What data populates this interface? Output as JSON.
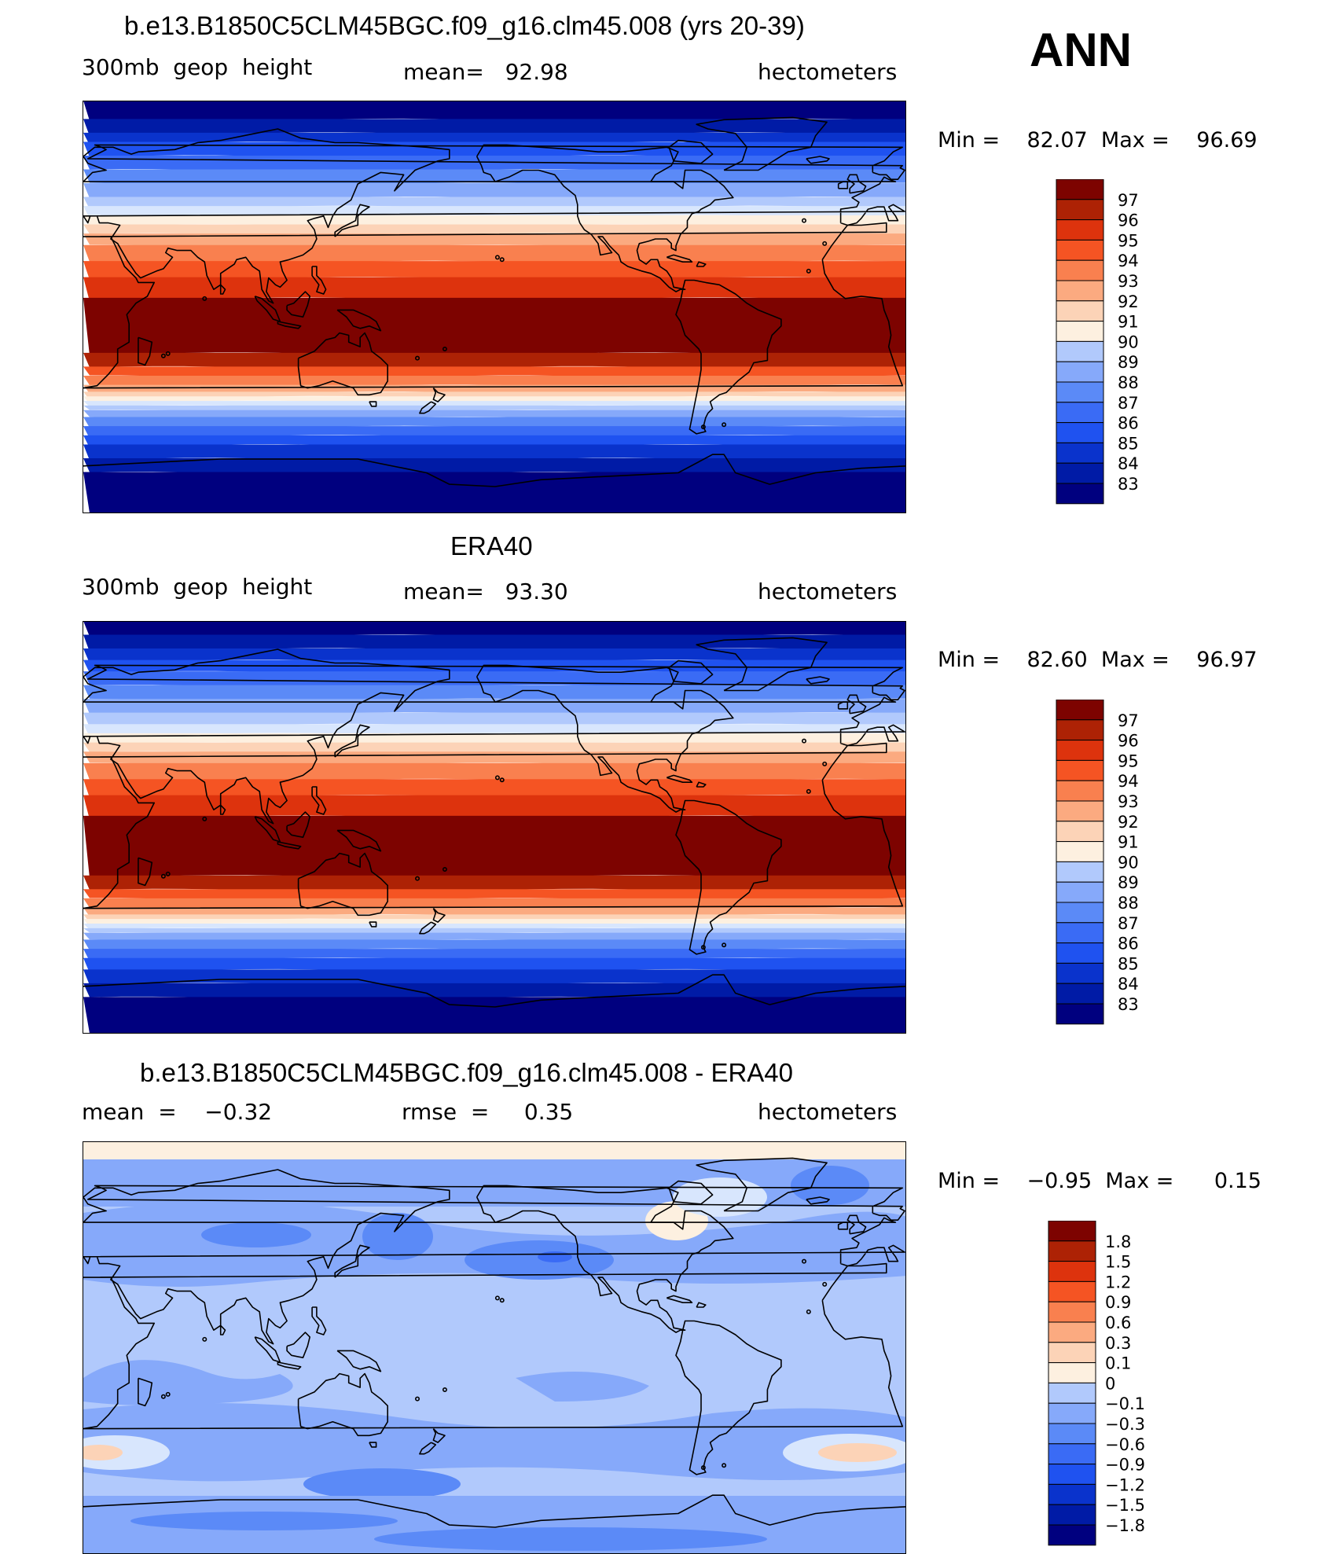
{
  "season": "ANN",
  "colors": {
    "abs_scale": [
      "#00007f",
      "#001ba6",
      "#0a33cc",
      "#1f52f0",
      "#3a6bf5",
      "#5b8af7",
      "#86a9fa",
      "#b1c9fc",
      "#d8e6fd",
      "#fdf0e0",
      "#fcd3b7",
      "#fbaa80",
      "#f9804f",
      "#f55423",
      "#dd330d",
      "#ad2205",
      "#7d0300"
    ],
    "diff_scale": [
      "#00007f",
      "#001ba6",
      "#0a33cc",
      "#1f52f0",
      "#3a6bf5",
      "#5b8af7",
      "#86a9fa",
      "#b1c9fc",
      "#d8e6fd",
      "#fdf0e0",
      "#fcd3b7",
      "#fbaa80",
      "#f9804f",
      "#f55423",
      "#dd330d",
      "#ad2205",
      "#7d0300"
    ],
    "coastline": "#000000"
  },
  "panels": [
    {
      "title": "b.e13.B1850C5CLM45BGC.f09_g16.clm45.008 (yrs 20-39)",
      "left_label": "300mb  geop  height",
      "center_label": "mean=   92.98",
      "right_label": "hectometers",
      "minmax": "Min =    82.07  Max =    96.69",
      "colorbar_labels": [
        "97",
        "96",
        "95",
        "94",
        "93",
        "92",
        "91",
        "90",
        "89",
        "88",
        "87",
        "86",
        "85",
        "84",
        "83"
      ]
    },
    {
      "title": "ERA40",
      "left_label": "300mb  geop  height",
      "center_label": "mean=   93.30",
      "right_label": "hectometers",
      "minmax": "Min =    82.60  Max =    96.97",
      "colorbar_labels": [
        "97",
        "96",
        "95",
        "94",
        "93",
        "92",
        "91",
        "90",
        "89",
        "88",
        "87",
        "86",
        "85",
        "84",
        "83"
      ]
    },
    {
      "title": "b.e13.B1850C5CLM45BGC.f09_g16.clm45.008 - ERA40",
      "left_label": "mean  =    −0.32",
      "center_label": "rmse  =     0.35",
      "right_label": "hectometers",
      "minmax": "Min =    −0.95  Max =      0.15",
      "colorbar_labels": [
        "1.8",
        "1.5",
        "1.2",
        "0.9",
        "0.6",
        "0.3",
        "0.1",
        "0",
        "−0.1",
        "−0.3",
        "−0.6",
        "−0.9",
        "−1.2",
        "−1.5",
        "−1.8"
      ]
    }
  ],
  "chart_data": [
    {
      "type": "heatmap",
      "title": "b.e13.B1850C5CLM45BGC.f09_g16.clm45.008 (yrs 20-39)",
      "variable": "300mb geop height",
      "units": "hectometers",
      "mean": 92.98,
      "min": 82.07,
      "max": 96.69,
      "contour_levels": [
        83,
        84,
        85,
        86,
        87,
        88,
        89,
        90,
        91,
        92,
        93,
        94,
        95,
        96,
        97
      ]
    },
    {
      "type": "heatmap",
      "title": "ERA40",
      "variable": "300mb geop height",
      "units": "hectometers",
      "mean": 93.3,
      "min": 82.6,
      "max": 96.97,
      "contour_levels": [
        83,
        84,
        85,
        86,
        87,
        88,
        89,
        90,
        91,
        92,
        93,
        94,
        95,
        96,
        97
      ]
    },
    {
      "type": "heatmap",
      "title": "b.e13.B1850C5CLM45BGC.f09_g16.clm45.008 - ERA40",
      "units": "hectometers",
      "mean": -0.32,
      "rmse": 0.35,
      "min": -0.95,
      "max": 0.15,
      "contour_levels": [
        -1.8,
        -1.5,
        -1.2,
        -0.9,
        -0.6,
        -0.3,
        -0.1,
        0,
        0.1,
        0.3,
        0.6,
        0.9,
        1.2,
        1.5,
        1.8
      ]
    }
  ]
}
